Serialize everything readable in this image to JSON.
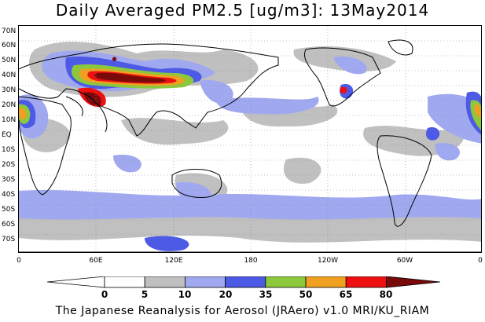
{
  "title": "Daily Averaged PM2.5 [ug/m3]: 13May2014",
  "footer": "The Japanese Reanalysis for Aerosol (JRAero) v1.0 MRI/KU_RIAM",
  "lat_labels": [
    "70N",
    "60N",
    "50N",
    "40N",
    "30N",
    "20N",
    "10N",
    "EQ",
    "10S",
    "20S",
    "30S",
    "40S",
    "50S",
    "60S",
    "70S"
  ],
  "lon_labels": [
    "0",
    "60E",
    "120E",
    "180",
    "120W",
    "60W",
    "0"
  ],
  "colorbar": {
    "labels": [
      "0",
      "5",
      "10",
      "20",
      "35",
      "50",
      "65",
      "80"
    ],
    "colors": [
      "#ffffff",
      "#c0c0c0",
      "#a0a8f0",
      "#4c5ae6",
      "#8cc83c",
      "#f0a020",
      "#ee1010",
      "#7a0a0a"
    ]
  }
}
